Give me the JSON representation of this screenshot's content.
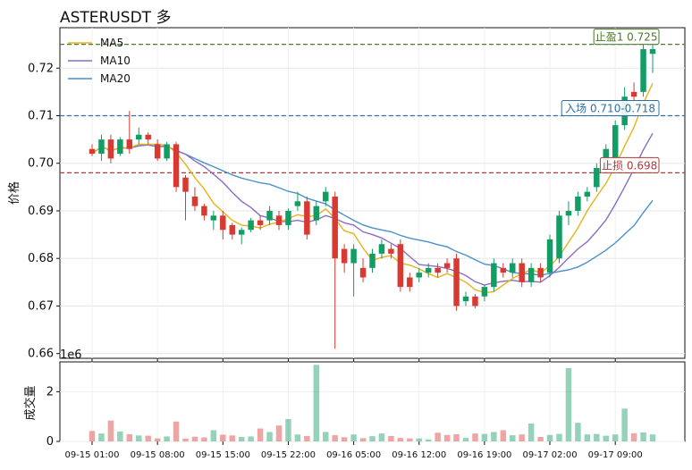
{
  "chart_data": {
    "type": "candlestick",
    "title": "ASTERUSDT 多",
    "ylabel": "价格",
    "ylim": [
      0.659,
      0.7285
    ],
    "yticks": [
      0.66,
      0.67,
      0.68,
      0.69,
      0.7,
      0.71,
      0.72
    ],
    "ytick_labels": [
      "0.66",
      "0.67",
      "0.68",
      "0.69",
      "0.70",
      "0.71",
      "0.72"
    ],
    "xtick_labels": [
      "09-15 01:00",
      "09-15 08:00",
      "09-15 15:00",
      "09-15 22:00",
      "09-16 05:00",
      "09-16 12:00",
      "09-16 19:00",
      "09-17 02:00",
      "09-17 09:00"
    ],
    "xtick_index": [
      0,
      7,
      14,
      21,
      28,
      35,
      42,
      49,
      56
    ],
    "colors": {
      "up": "#129d64",
      "down": "#d83a32",
      "ma5": "#e8b21b",
      "ma10": "#8c6cc2",
      "ma20": "#4a90cc",
      "entry": "#2f6fa6",
      "stop": "#b03a3a",
      "tp": "#4a7a2a"
    },
    "legend": [
      "MA5",
      "MA10",
      "MA20"
    ],
    "levels": [
      {
        "label": "止盈1 0.725",
        "value": 0.725,
        "color": "#4a7a2a"
      },
      {
        "label": "入场 0.710-0.718",
        "value": 0.71,
        "color": "#2f6fa6"
      },
      {
        "label": "止损 0.698",
        "value": 0.698,
        "color": "#b03a3a"
      }
    ],
    "candles": [
      [
        0.703,
        0.702,
        0.704,
        0.7015
      ],
      [
        0.702,
        0.705,
        0.706,
        0.7005
      ],
      [
        0.705,
        0.701,
        0.706,
        0.7
      ],
      [
        0.702,
        0.705,
        0.7055,
        0.7015
      ],
      [
        0.705,
        0.703,
        0.711,
        0.702
      ],
      [
        0.705,
        0.706,
        0.7075,
        0.704
      ],
      [
        0.706,
        0.705,
        0.7065,
        0.704
      ],
      [
        0.704,
        0.701,
        0.705,
        0.7005
      ],
      [
        0.701,
        0.704,
        0.7045,
        0.7005
      ],
      [
        0.704,
        0.695,
        0.7045,
        0.694
      ],
      [
        0.697,
        0.694,
        0.6975,
        0.688
      ],
      [
        0.693,
        0.691,
        0.695,
        0.69
      ],
      [
        0.691,
        0.689,
        0.6915,
        0.688
      ],
      [
        0.688,
        0.689,
        0.69,
        0.686
      ],
      [
        0.689,
        0.686,
        0.69,
        0.684
      ],
      [
        0.687,
        0.685,
        0.6875,
        0.684
      ],
      [
        0.685,
        0.686,
        0.6865,
        0.683
      ],
      [
        0.686,
        0.688,
        0.6885,
        0.6855
      ],
      [
        0.688,
        0.687,
        0.689,
        0.686
      ],
      [
        0.688,
        0.69,
        0.691,
        0.687
      ],
      [
        0.689,
        0.687,
        0.69,
        0.686
      ],
      [
        0.687,
        0.69,
        0.6905,
        0.686
      ],
      [
        0.691,
        0.692,
        0.694,
        0.69
      ],
      [
        0.692,
        0.685,
        0.693,
        0.684
      ],
      [
        0.688,
        0.691,
        0.692,
        0.687
      ],
      [
        0.692,
        0.694,
        0.695,
        0.691
      ],
      [
        0.693,
        0.68,
        0.694,
        0.661
      ],
      [
        0.682,
        0.679,
        0.683,
        0.677
      ],
      [
        0.679,
        0.682,
        0.683,
        0.672
      ],
      [
        0.678,
        0.676,
        0.68,
        0.675
      ],
      [
        0.678,
        0.681,
        0.682,
        0.677
      ],
      [
        0.681,
        0.683,
        0.684,
        0.68
      ],
      [
        0.682,
        0.681,
        0.683,
        0.68
      ],
      [
        0.683,
        0.674,
        0.684,
        0.673
      ],
      [
        0.676,
        0.674,
        0.677,
        0.673
      ],
      [
        0.676,
        0.677,
        0.678,
        0.675
      ],
      [
        0.677,
        0.678,
        0.679,
        0.676
      ],
      [
        0.678,
        0.677,
        0.679,
        0.676
      ],
      [
        0.679,
        0.678,
        0.68,
        0.677
      ],
      [
        0.68,
        0.67,
        0.681,
        0.669
      ],
      [
        0.671,
        0.672,
        0.673,
        0.67
      ],
      [
        0.672,
        0.67,
        0.6725,
        0.6695
      ],
      [
        0.672,
        0.674,
        0.6745,
        0.671
      ],
      [
        0.674,
        0.679,
        0.68,
        0.673
      ],
      [
        0.678,
        0.677,
        0.679,
        0.676
      ],
      [
        0.677,
        0.679,
        0.68,
        0.676
      ],
      [
        0.679,
        0.675,
        0.68,
        0.674
      ],
      [
        0.675,
        0.678,
        0.679,
        0.674
      ],
      [
        0.678,
        0.676,
        0.679,
        0.675
      ],
      [
        0.677,
        0.684,
        0.685,
        0.676
      ],
      [
        0.68,
        0.689,
        0.69,
        0.679
      ],
      [
        0.689,
        0.69,
        0.692,
        0.687
      ],
      [
        0.69,
        0.693,
        0.694,
        0.689
      ],
      [
        0.693,
        0.694,
        0.695,
        0.692
      ],
      [
        0.695,
        0.699,
        0.7,
        0.694
      ],
      [
        0.699,
        0.703,
        0.704,
        0.698
      ],
      [
        0.701,
        0.708,
        0.709,
        0.7
      ],
      [
        0.708,
        0.714,
        0.716,
        0.707
      ],
      [
        0.715,
        0.714,
        0.717,
        0.712
      ],
      [
        0.715,
        0.724,
        0.725,
        0.714
      ],
      [
        0.723,
        0.724,
        0.726,
        0.719
      ]
    ],
    "volumes": [
      0.42,
      0.32,
      0.84,
      0.4,
      0.29,
      0.24,
      0.23,
      0.12,
      0.2,
      0.8,
      0.11,
      0.19,
      0.16,
      0.45,
      0.27,
      0.24,
      0.18,
      0.2,
      0.52,
      0.38,
      0.64,
      0.9,
      0.28,
      0.22,
      3.08,
      0.38,
      0.25,
      0.17,
      0.28,
      0.13,
      0.21,
      0.32,
      0.22,
      0.14,
      0.12,
      0.12,
      0.08,
      0.35,
      0.26,
      0.29,
      0.14,
      0.32,
      0.3,
      0.38,
      0.45,
      0.25,
      0.28,
      0.72,
      0.18,
      0.26,
      0.3,
      2.95,
      0.75,
      0.28,
      0.3,
      0.23,
      0.28,
      1.32,
      0.33,
      0.36,
      0.28
    ],
    "volume_ylim": [
      0,
      3.2
    ],
    "volume_yticks": [
      0,
      2
    ],
    "volume_ytick_labels": [
      "0",
      "2"
    ],
    "volume_ylabel": "成交量",
    "volume_exponent_label": "1e6"
  }
}
